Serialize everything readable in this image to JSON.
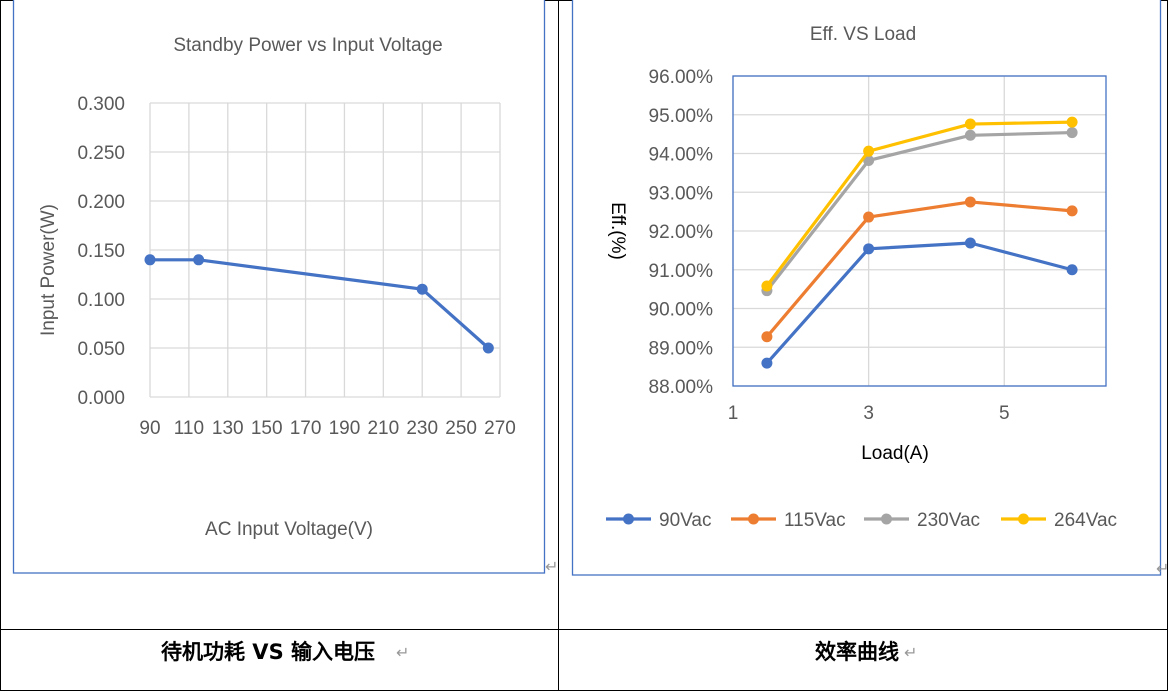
{
  "para_mark": "↵",
  "captions": {
    "left": "待机功耗 VS 输入电压",
    "right": "效率曲线"
  },
  "colors": {
    "axis_text": "#595959",
    "grid": "#d9d9d9",
    "frame": "#4472C4"
  },
  "chart_data": [
    {
      "type": "line",
      "title": "Standby Power vs Input Voltage",
      "xlabel": "AC Input Voltage(V)",
      "ylabel": "Input Power(W)",
      "xlim": [
        90,
        270
      ],
      "ylim": [
        0,
        0.3
      ],
      "x_ticks": [
        "90",
        "110",
        "130",
        "150",
        "170",
        "190",
        "210",
        "230",
        "250",
        "270"
      ],
      "y_ticks": [
        "0.000",
        "0.050",
        "0.100",
        "0.150",
        "0.200",
        "0.250",
        "0.300"
      ],
      "grid": true,
      "series": [
        {
          "color": "#4472C4",
          "x": [
            90,
            115,
            230,
            264
          ],
          "y": [
            0.14,
            0.14,
            0.11,
            0.05
          ]
        }
      ]
    },
    {
      "type": "line",
      "title": "Eff. VS Load",
      "xlabel": "Load(A)",
      "ylabel": "Eff.(%)",
      "xlim": [
        1,
        6.5
      ],
      "ylim": [
        88,
        96
      ],
      "x_ticks": [
        "1",
        "3",
        "5"
      ],
      "y_ticks": [
        "88.00%",
        "89.00%",
        "90.00%",
        "91.00%",
        "92.00%",
        "93.00%",
        "94.00%",
        "95.00%",
        "96.00%"
      ],
      "grid": true,
      "legend": "bottom",
      "x": [
        1.5,
        3,
        4.5,
        6
      ],
      "series": [
        {
          "name": "90Vac",
          "color": "#4472C4",
          "y": [
            88.59,
            91.54,
            91.69,
            91.0
          ]
        },
        {
          "name": "115Vac",
          "color": "#ED7D31",
          "y": [
            89.27,
            92.36,
            92.75,
            92.52
          ]
        },
        {
          "name": "230Vac",
          "color": "#A5A5A5",
          "y": [
            90.46,
            93.82,
            94.47,
            94.54
          ]
        },
        {
          "name": "264Vac",
          "color": "#FFC000",
          "y": [
            90.58,
            94.06,
            94.76,
            94.81
          ]
        }
      ]
    }
  ]
}
